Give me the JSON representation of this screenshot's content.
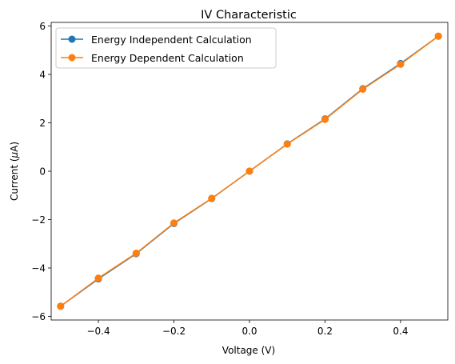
{
  "chart_data": {
    "type": "line",
    "title": "IV Characteristic",
    "xlabel": "Voltage (V)",
    "ylabel_main": "Current (",
    "ylabel_mu": "μ",
    "ylabel_unit": "A)",
    "xlim": [
      -0.525,
      0.525
    ],
    "ylim": [
      -6.15,
      6.15
    ],
    "x_ticks": [
      -0.4,
      -0.2,
      0.0,
      0.2,
      0.4
    ],
    "x_tick_labels": [
      "−0.4",
      "−0.2",
      "0.0",
      "0.2",
      "0.4"
    ],
    "y_ticks": [
      -6,
      -4,
      -2,
      0,
      2,
      4,
      6
    ],
    "y_tick_labels": [
      "−6",
      "−4",
      "−2",
      "0",
      "2",
      "4",
      "6"
    ],
    "grid": false,
    "legend_position": "upper-left",
    "x": [
      -0.5,
      -0.4,
      -0.3,
      -0.2,
      -0.1,
      0.0,
      0.1,
      0.2,
      0.3,
      0.4,
      0.5
    ],
    "series": [
      {
        "name": "Energy Independent Calculation",
        "color": "#1f77b4",
        "values": [
          -5.58,
          -4.45,
          -3.41,
          -2.16,
          -1.13,
          0.0,
          1.13,
          2.16,
          3.41,
          4.45,
          5.58
        ]
      },
      {
        "name": "Energy Dependent Calculation",
        "color": "#ff7f0e",
        "values": [
          -5.58,
          -4.42,
          -3.39,
          -2.14,
          -1.12,
          0.0,
          1.12,
          2.14,
          3.39,
          4.42,
          5.58
        ]
      }
    ]
  }
}
